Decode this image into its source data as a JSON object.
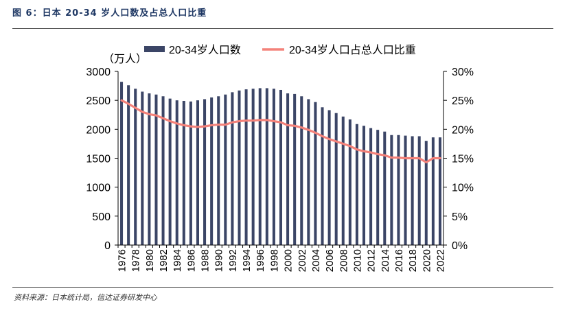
{
  "figure": {
    "title": "图 6：日本 20-34 岁人口数及占总人口比重",
    "source": "资料来源：日本统计局，信达证券研发中心"
  },
  "colors": {
    "bar": "#3b4566",
    "line": "#f4827a",
    "axis": "#000000",
    "title": "#1f3864"
  },
  "chart_data": {
    "type": "bar+line",
    "title": "",
    "ylabel_left": "（万人）",
    "ylabel_right": "",
    "xlabel": "",
    "legend_position": "top",
    "ylim_left": [
      0,
      3000
    ],
    "yticks_left": [
      "0",
      "500",
      "1000",
      "1500",
      "2000",
      "2500",
      "3000"
    ],
    "ylim_right": [
      0,
      30
    ],
    "yticks_right": [
      "0%",
      "5%",
      "10%",
      "15%",
      "20%",
      "25%",
      "30%"
    ],
    "x": [
      1976,
      1977,
      1978,
      1979,
      1980,
      1981,
      1982,
      1983,
      1984,
      1985,
      1986,
      1987,
      1988,
      1989,
      1990,
      1991,
      1992,
      1993,
      1994,
      1995,
      1996,
      1997,
      1998,
      1999,
      2000,
      2001,
      2002,
      2003,
      2004,
      2005,
      2006,
      2007,
      2008,
      2009,
      2010,
      2011,
      2012,
      2013,
      2014,
      2015,
      2016,
      2017,
      2018,
      2019,
      2020,
      2021,
      2022
    ],
    "x_tick_labels": [
      "1976",
      "1978",
      "1980",
      "1982",
      "1984",
      "1986",
      "1988",
      "1990",
      "1992",
      "1994",
      "1996",
      "1998",
      "2000",
      "2002",
      "2004",
      "2006",
      "2008",
      "2010",
      "2012",
      "2014",
      "2016",
      "2018",
      "2020",
      "2022"
    ],
    "series": [
      {
        "name": "20-34岁人口数",
        "type": "bar",
        "axis": "left",
        "values": [
          2820,
          2760,
          2700,
          2650,
          2620,
          2600,
          2570,
          2530,
          2500,
          2490,
          2480,
          2500,
          2520,
          2550,
          2570,
          2600,
          2640,
          2670,
          2690,
          2700,
          2710,
          2710,
          2700,
          2680,
          2620,
          2610,
          2570,
          2520,
          2470,
          2380,
          2330,
          2280,
          2220,
          2170,
          2090,
          2060,
          2020,
          1990,
          1960,
          1900,
          1900,
          1890,
          1880,
          1880,
          1800,
          1860,
          1860
        ]
      },
      {
        "name": "20-34岁人口占总人口比重",
        "type": "line",
        "axis": "right",
        "values": [
          25.0,
          24.4,
          23.7,
          23.0,
          22.6,
          22.4,
          21.9,
          21.4,
          21.0,
          20.7,
          20.5,
          20.4,
          20.5,
          20.7,
          20.8,
          20.8,
          21.2,
          21.4,
          21.5,
          21.5,
          21.6,
          21.6,
          21.4,
          21.2,
          20.7,
          20.6,
          20.3,
          19.9,
          19.4,
          18.8,
          18.3,
          17.9,
          17.5,
          17.1,
          16.5,
          16.2,
          16.0,
          15.7,
          15.5,
          15.1,
          15.1,
          15.0,
          15.0,
          15.0,
          14.3,
          15.0,
          15.0
        ]
      }
    ]
  }
}
